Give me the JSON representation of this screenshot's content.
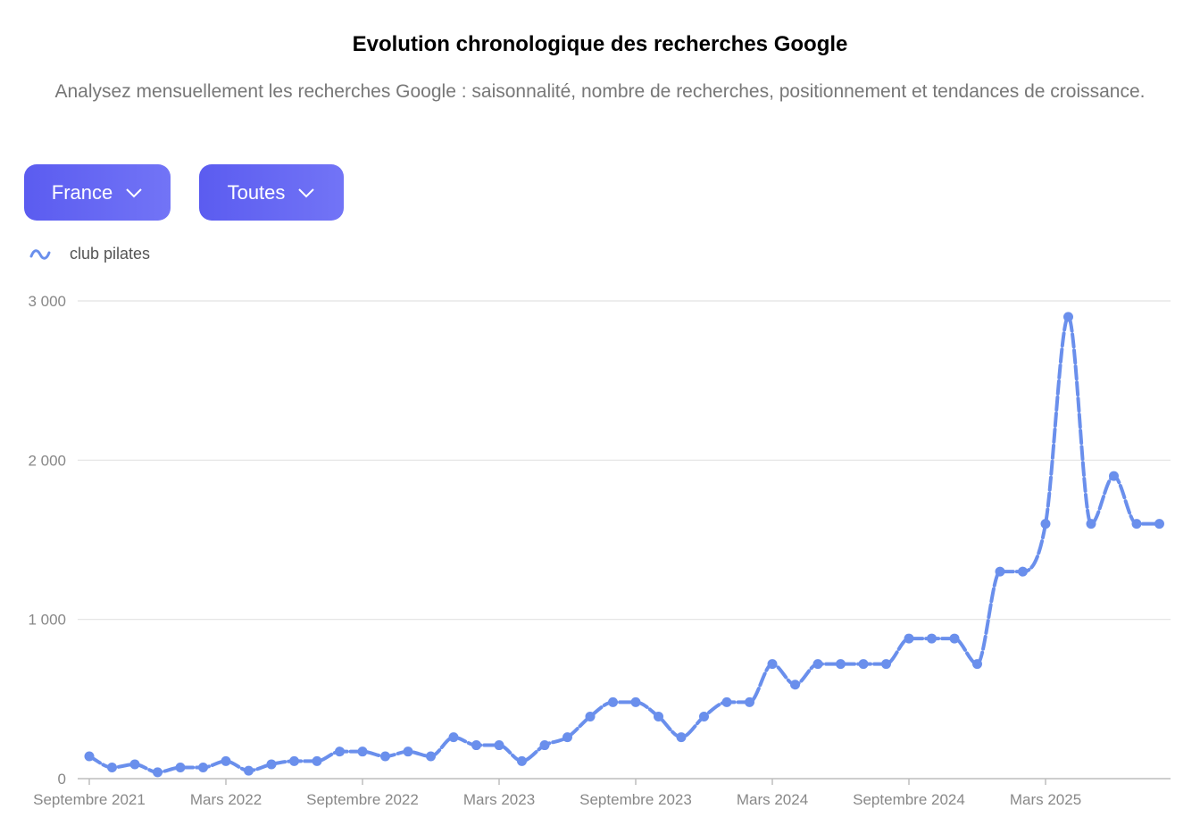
{
  "header": {
    "title": "Evolution chronologique des recherches Google",
    "subtitle": "Analysez mensuellement les recherches Google : saisonnalité, nombre de recherches, positionnement et tendances de croissance."
  },
  "filters": {
    "country": "France",
    "type": "Toutes"
  },
  "colors": {
    "accent": "#5b5cf0",
    "series": "#6a8fec",
    "grid": "#e2e2e2"
  },
  "chart_data": {
    "type": "line",
    "legend": [
      "club pilates"
    ],
    "legend_icon": "wave-icon",
    "x_ticks": [
      "Septembre 2021",
      "Mars 2022",
      "Septembre 2022",
      "Mars 2023",
      "Septembre 2023",
      "Mars 2024",
      "Septembre 2024",
      "Mars 2025"
    ],
    "y_ticks": [
      "0",
      "1 000",
      "2 000",
      "3 000"
    ],
    "ylim": [
      0,
      3000
    ],
    "grid": true,
    "x": [
      "2021-09",
      "2021-10",
      "2021-11",
      "2021-12",
      "2022-01",
      "2022-02",
      "2022-03",
      "2022-04",
      "2022-05",
      "2022-06",
      "2022-07",
      "2022-08",
      "2022-09",
      "2022-10",
      "2022-11",
      "2022-12",
      "2023-01",
      "2023-02",
      "2023-03",
      "2023-04",
      "2023-05",
      "2023-06",
      "2023-07",
      "2023-08",
      "2023-09",
      "2023-10",
      "2023-11",
      "2023-12",
      "2024-01",
      "2024-02",
      "2024-03",
      "2024-04",
      "2024-05",
      "2024-06",
      "2024-07",
      "2024-08",
      "2024-09",
      "2024-10",
      "2024-11",
      "2024-12",
      "2025-01",
      "2025-02",
      "2025-03",
      "2025-04",
      "2025-05",
      "2025-06",
      "2025-07",
      "2025-08"
    ],
    "series": [
      {
        "name": "club pilates",
        "values": [
          140,
          70,
          90,
          40,
          70,
          70,
          110,
          50,
          90,
          110,
          110,
          170,
          170,
          140,
          170,
          140,
          260,
          210,
          210,
          110,
          210,
          260,
          390,
          480,
          480,
          390,
          260,
          390,
          480,
          480,
          720,
          590,
          720,
          720,
          720,
          720,
          880,
          880,
          880,
          720,
          1300,
          1300,
          1600,
          2900,
          1600,
          1900,
          1600,
          1600
        ]
      }
    ]
  }
}
